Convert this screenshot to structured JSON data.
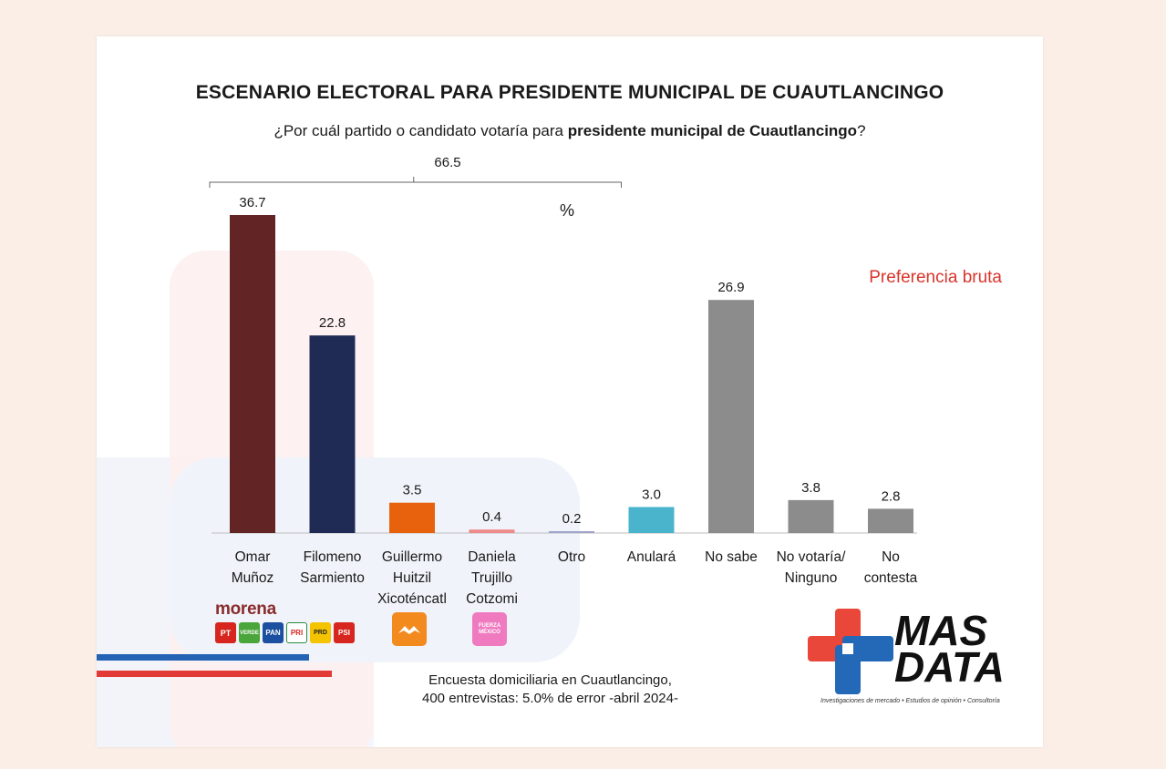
{
  "title": "ESCENARIO ELECTORAL PARA PRESIDENTE MUNICIPAL DE CUAUTLANCINGO",
  "question_prefix": "¿Por cuál partido o candidato votaría para ",
  "question_bold": "presidente municipal de Cuautlancingo",
  "question_suffix": "?",
  "unit_label": "%",
  "preference_label": "Preferencia bruta",
  "brace_total": "66.5",
  "footnote_line1": "Encuesta domiciliaria en Cuautlancingo,",
  "footnote_line2": "400 entrevistas: 5.0% de error -abril 2024-",
  "brand": {
    "name_line1": "MAS",
    "name_line2": "DATA",
    "tagline": "Investigaciones de mercado • Estudios de opinión • Consultoría"
  },
  "party_logos": {
    "morena": "morena",
    "group": [
      "PT",
      "VERDE",
      "PAN",
      "PRI",
      "PRD",
      "PSI"
    ],
    "fuerza_mexico": "FUERZA MÉXICO"
  },
  "chart_data": {
    "type": "bar",
    "title": "ESCENARIO ELECTORAL PARA PRESIDENTE MUNICIPAL DE CUAUTLANCINGO",
    "categories": [
      [
        "Omar",
        "Muñoz"
      ],
      [
        "Filomeno",
        "Sarmiento"
      ],
      [
        "Guillermo",
        "Huitzil",
        "Xicoténcatl"
      ],
      [
        "Daniela",
        "Trujillo",
        "Cotzomi"
      ],
      [
        "Otro"
      ],
      [
        "Anulará"
      ],
      [
        "No sabe"
      ],
      [
        "No votaría/",
        "Ninguno"
      ],
      [
        "No",
        "contesta"
      ]
    ],
    "values": [
      36.7,
      22.8,
      3.5,
      0.4,
      0.2,
      3.0,
      26.9,
      3.8,
      2.8
    ],
    "value_labels": [
      "36.7",
      "22.8",
      "3.5",
      "0.4",
      "0.2",
      "3.0",
      "26.9",
      "3.8",
      "2.8"
    ],
    "colors": [
      "#622424",
      "#1f2a55",
      "#e8620e",
      "#ee8a8a",
      "#9fa4c8",
      "#4ab4cc",
      "#8c8c8c",
      "#8c8c8c",
      "#8c8c8c"
    ],
    "ylim": [
      0,
      36.7
    ],
    "grid": false,
    "annotation": {
      "text": "66.5",
      "spans_categories": [
        0,
        5
      ]
    }
  }
}
